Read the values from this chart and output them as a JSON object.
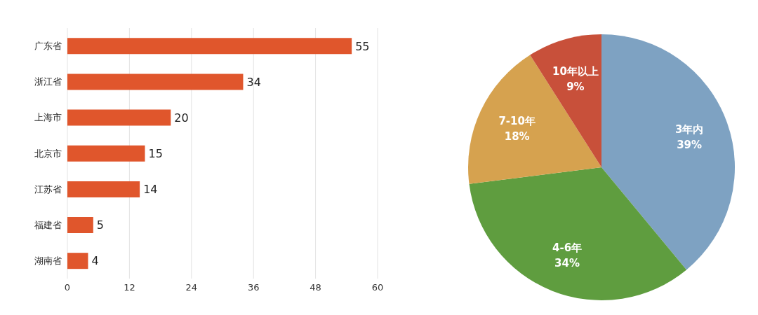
{
  "chart_data": [
    {
      "type": "bar",
      "orientation": "horizontal",
      "categories": [
        "广东省",
        "浙江省",
        "上海市",
        "北京市",
        "江苏省",
        "福建省",
        "湖南省"
      ],
      "values": [
        55,
        34,
        20,
        15,
        14,
        5,
        4
      ],
      "color": "#e0562c",
      "xlim": [
        0,
        60
      ],
      "xticks": [
        0,
        12,
        24,
        36,
        48,
        60
      ],
      "grid": "x",
      "data_labels": true
    },
    {
      "type": "pie",
      "categories": [
        "3年内",
        "4-6年",
        "7-10年",
        "10年以上"
      ],
      "values": [
        39,
        34,
        18,
        9
      ],
      "colors": [
        "#7ea2c2",
        "#5f9d3f",
        "#d6a24f",
        "#c8503a"
      ],
      "value_labels": [
        "39%",
        "34%",
        "18%",
        "9%"
      ]
    }
  ]
}
